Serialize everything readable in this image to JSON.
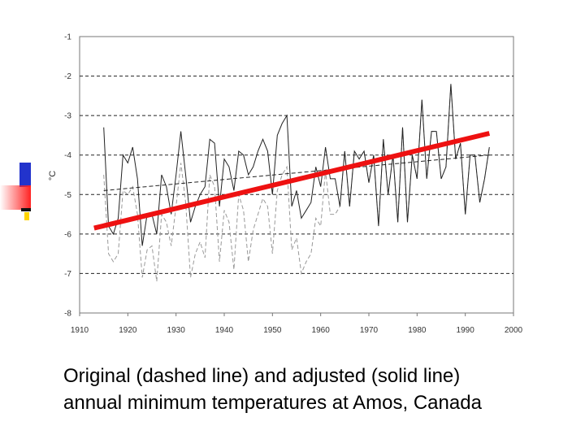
{
  "chart_data": {
    "type": "line",
    "title": "",
    "xlabel": "",
    "ylabel": "°C",
    "xlim": [
      1910,
      2000
    ],
    "ylim": [
      -8,
      -1
    ],
    "x_ticks": [
      "1910",
      "1920",
      "1930",
      "1940",
      "1950",
      "1960",
      "1970",
      "1980",
      "1990",
      "2000"
    ],
    "y_ticks": [
      "-1",
      "-2",
      "-3",
      "-4",
      "-5",
      "-6",
      "-7",
      "-8"
    ],
    "grid": "horizontal-dashed",
    "series": [
      {
        "style": "solid",
        "color": "#222222",
        "x": [
          1915,
          1916,
          1917,
          1918,
          1919,
          1920,
          1921,
          1922,
          1923,
          1924,
          1925,
          1926,
          1927,
          1928,
          1929,
          1930,
          1931,
          1932,
          1933,
          1934,
          1935,
          1936,
          1937,
          1938,
          1939,
          1940,
          1941,
          1942,
          1943,
          1944,
          1945,
          1946,
          1947,
          1948,
          1949,
          1950,
          1951,
          1952,
          1953,
          1954,
          1955,
          1956,
          1957,
          1958,
          1959,
          1960,
          1961,
          1962,
          1963,
          1964,
          1965,
          1966,
          1967,
          1968,
          1969,
          1970,
          1971,
          1972,
          1973,
          1974,
          1975,
          1976,
          1977,
          1978,
          1979,
          1980,
          1981,
          1982,
          1983,
          1984,
          1985,
          1986,
          1987,
          1988,
          1989,
          1990,
          1991,
          1992,
          1993,
          1994,
          1995
        ],
        "y": [
          -3.3,
          -5.8,
          -6.0,
          -5.6,
          -4.0,
          -4.2,
          -3.8,
          -4.6,
          -6.3,
          -5.5,
          -5.5,
          -6.0,
          -4.5,
          -4.8,
          -5.5,
          -4.5,
          -3.4,
          -4.5,
          -5.7,
          -5.3,
          -5.0,
          -4.8,
          -3.6,
          -3.7,
          -5.3,
          -4.1,
          -4.3,
          -4.9,
          -3.9,
          -4.0,
          -4.5,
          -4.3,
          -3.9,
          -3.6,
          -3.9,
          -5.0,
          -3.5,
          -3.2,
          -3.0,
          -5.3,
          -4.9,
          -5.6,
          -5.4,
          -5.2,
          -4.3,
          -4.8,
          -3.8,
          -4.6,
          -4.6,
          -5.3,
          -3.9,
          -5.3,
          -3.9,
          -4.1,
          -3.9,
          -4.7,
          -4.0,
          -5.8,
          -3.6,
          -5.0,
          -4.0,
          -5.7,
          -3.3,
          -5.7,
          -4.0,
          -4.6,
          -2.6,
          -4.6,
          -3.4,
          -3.4,
          -4.6,
          -4.3,
          -2.2,
          -4.1,
          -3.7,
          -5.5,
          -4.0,
          -4.0,
          -5.2,
          -4.6,
          -3.8
        ]
      },
      {
        "style": "dashed",
        "color": "#999999",
        "x": [
          1915,
          1916,
          1917,
          1918,
          1919,
          1920,
          1921,
          1922,
          1923,
          1924,
          1925,
          1926,
          1927,
          1928,
          1929,
          1930,
          1931,
          1932,
          1933,
          1934,
          1935,
          1936,
          1937,
          1938,
          1939,
          1940,
          1941,
          1942,
          1943,
          1944,
          1945,
          1946,
          1947,
          1948,
          1949,
          1950,
          1951,
          1952,
          1953,
          1954,
          1955,
          1956,
          1957,
          1958,
          1959,
          1960,
          1961,
          1962,
          1963,
          1964,
          1965,
          1966,
          1967,
          1968,
          1969,
          1970,
          1971,
          1972,
          1973,
          1974,
          1975,
          1976,
          1977,
          1978,
          1979,
          1980,
          1981,
          1982,
          1983,
          1984,
          1985,
          1986,
          1987,
          1988,
          1989,
          1990,
          1991,
          1992,
          1993,
          1994,
          1995
        ],
        "y": [
          -4.5,
          -6.5,
          -6.7,
          -6.5,
          -4.9,
          -5.0,
          -4.8,
          -5.5,
          -7.1,
          -6.4,
          -6.3,
          -7.2,
          -5.5,
          -5.7,
          -6.3,
          -5.3,
          -4.2,
          -5.2,
          -7.1,
          -6.5,
          -6.2,
          -6.6,
          -4.5,
          -4.8,
          -6.7,
          -5.4,
          -5.7,
          -6.9,
          -5.0,
          -5.4,
          -6.7,
          -5.9,
          -5.5,
          -5.1,
          -5.3,
          -6.5,
          -4.9,
          -4.5,
          -4.3,
          -6.4,
          -6.1,
          -7.0,
          -6.7,
          -6.5,
          -5.6,
          -5.8,
          -4.4,
          -5.5,
          -5.5,
          -5.3,
          -3.9,
          -5.3,
          -3.9,
          -4.1,
          -3.9,
          -4.7,
          -4.0,
          -5.8,
          -3.6,
          -5.0,
          -4.0,
          -5.7,
          -3.3,
          -5.7,
          -4.0,
          -4.6,
          -2.6,
          -4.6,
          -3.4,
          -3.4,
          -4.6,
          -4.3,
          -2.2,
          -4.1,
          -3.7,
          -5.5,
          -4.0,
          -4.0,
          -5.2,
          -4.6,
          -3.8
        ]
      }
    ],
    "trends": [
      {
        "style": "dashed",
        "color": "#222222",
        "x": [
          1915,
          1995
        ],
        "y": [
          -4.9,
          -4.0
        ]
      },
      {
        "style": "solid-thick",
        "color": "#ee1111",
        "x": [
          1913,
          1995
        ],
        "y": [
          -5.85,
          -3.45
        ]
      }
    ]
  },
  "caption": {
    "line1": "Original (dashed line) and adjusted (solid line)",
    "line2": "annual minimum temperatures at Amos, Canada"
  },
  "colors": {
    "accent_blue": "#2233cc",
    "accent_red": "#ff2222",
    "accent_yellow": "#ffd400"
  }
}
